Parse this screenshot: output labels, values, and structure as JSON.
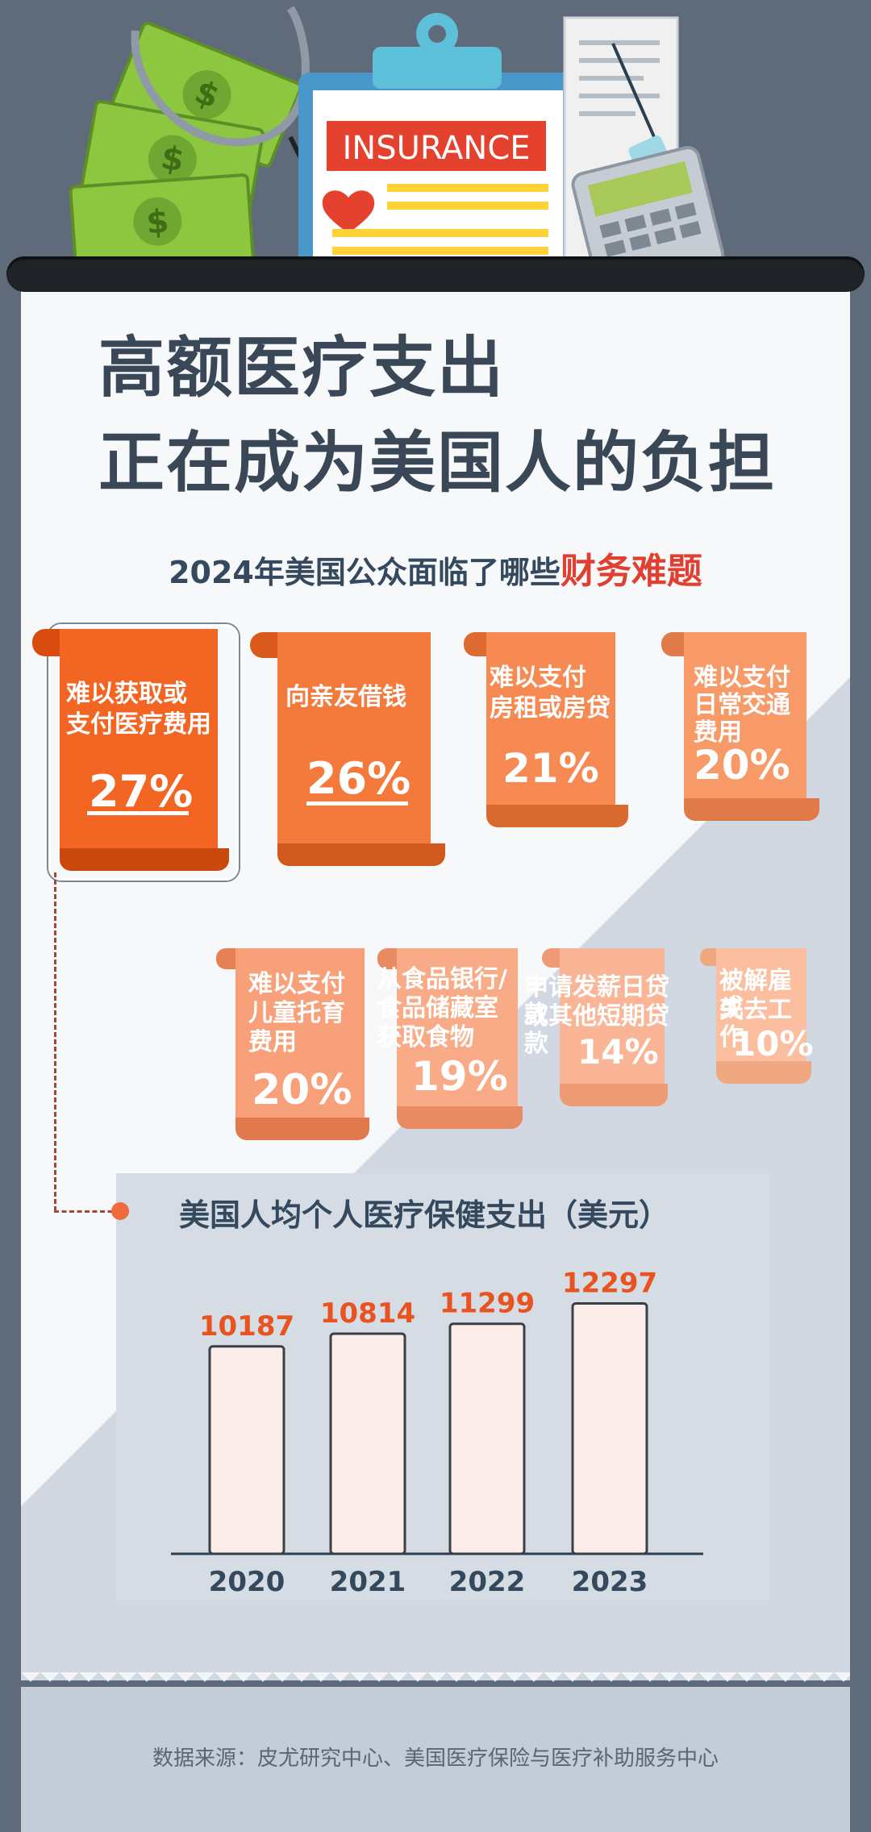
{
  "illustration": {
    "clipboard_label": "INSURANCE"
  },
  "title_line1": "高额医疗支出",
  "title_line2": "正在成为美国人的负担",
  "subtitle_prefix": "2024年美国公众面临了哪些",
  "subtitle_highlight": "财务难题",
  "issues": [
    {
      "lines": [
        "难以获取或",
        "支付医疗费用"
      ],
      "percent": "27%",
      "value": 27
    },
    {
      "lines": [
        "向亲友借钱"
      ],
      "percent": "26%",
      "value": 26
    },
    {
      "lines": [
        "难以支付",
        "房租或房贷"
      ],
      "percent": "21%",
      "value": 21
    },
    {
      "lines": [
        "难以支付",
        "日常交通",
        "费用"
      ],
      "percent": "20%",
      "value": 20
    },
    {
      "lines": [
        "难以支付",
        "儿童托育",
        "费用"
      ],
      "percent": "20%",
      "value": 20
    },
    {
      "lines": [
        "从食品银行/",
        "食品储藏室",
        "获取食物"
      ],
      "percent": "19%",
      "value": 19
    },
    {
      "lines": [
        "申请发薪日贷款",
        "或其他短期贷款"
      ],
      "percent": "14%",
      "value": 14
    },
    {
      "lines": [
        "被解雇或",
        "失去工作"
      ],
      "percent": "10%",
      "value": 10
    }
  ],
  "chart_data": {
    "type": "bar",
    "title": "美国人均个人医疗保健支出（美元）",
    "categories": [
      "2020",
      "2021",
      "2022",
      "2023"
    ],
    "values": [
      10187,
      10814,
      11299,
      12297
    ],
    "value_labels": [
      "10187",
      "10814",
      "11299",
      "12297"
    ]
  },
  "source": "数据来源：皮尤研究中心、美国医疗保险与医疗补助服务中心",
  "colors": {
    "accent_red": "#e04030",
    "banner_1": "#f26522",
    "banner_2": "#f47a3c",
    "banner_3": "#f68a52",
    "banner_4": "#f89a68",
    "bar_fill": "#fbeeea",
    "bar_value": "#e8531f",
    "text_dark": "#34495e"
  }
}
